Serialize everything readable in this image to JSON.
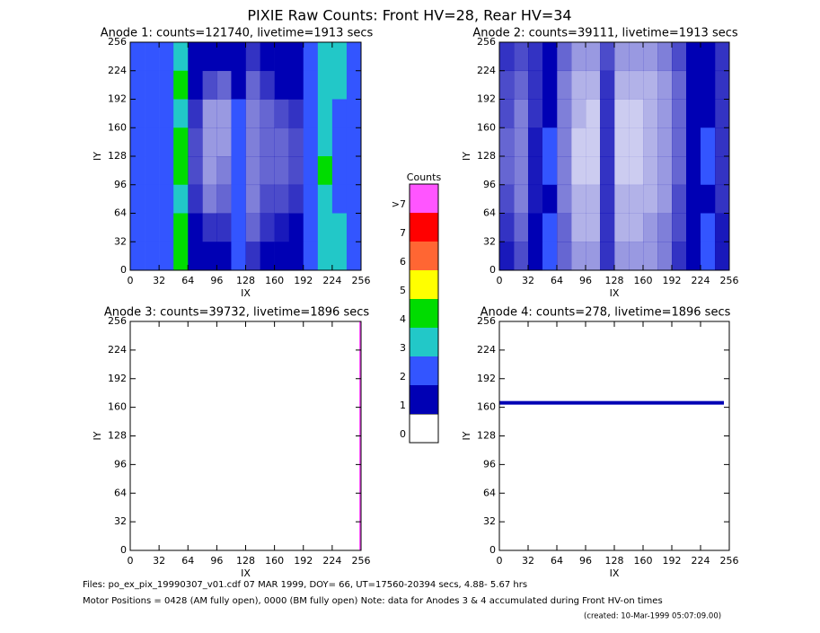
{
  "title": "PIXIE Raw Counts:  Front HV=28, Rear HV=34",
  "colorbar": {
    "title": "Counts",
    "labels": [
      "0",
      "1",
      "2",
      "3",
      "4",
      "5",
      "6",
      "7",
      ">7"
    ],
    "colors": [
      "#ffffff",
      "#0000b4",
      "#3355ff",
      "#22c8c8",
      "#00dc00",
      "#ffff00",
      "#ff6633",
      "#ff0000",
      "#ff55ff"
    ]
  },
  "footer": [
    "Files: po_ex_pix_19990307_v01.cdf    07 MAR 1999, DOY= 66, UT=17560-20394 secs,  4.88- 5.67 hrs",
    "Motor Positions = 0428 (AM fully open), 0000 (BM fully open)    Note: data for Anodes 3 & 4 accumulated during Front HV-on times",
    "(created: 10-Mar-1999 05:07:09.00)"
  ],
  "chart_data": [
    {
      "type": "heatmap",
      "title": "Anode 1: counts=121740, livetime=1913 secs",
      "xlabel": "IX",
      "ylabel": "IY",
      "xlim": [
        0,
        256
      ],
      "ylim": [
        0,
        256
      ],
      "xticks": [
        0,
        32,
        64,
        96,
        128,
        160,
        192,
        224,
        256
      ],
      "yticks": [
        0,
        32,
        64,
        96,
        128,
        160,
        192,
        224,
        256
      ],
      "values": [
        [
          1.5,
          1.5,
          2,
          3,
          1.2,
          1,
          1,
          1.2,
          0.8,
          1,
          1,
          1,
          1.5,
          2.5,
          2.5,
          1.5
        ],
        [
          1.5,
          1.5,
          2,
          4,
          1,
          0.7,
          0.6,
          1.2,
          0.6,
          0.8,
          1,
          1,
          1.5,
          3,
          2.5,
          1.5
        ],
        [
          1.5,
          1.5,
          2,
          3,
          0.8,
          0.4,
          0.4,
          1.5,
          0.5,
          0.6,
          0.7,
          0.8,
          1.5,
          2.5,
          2,
          1.5
        ],
        [
          1.5,
          1.5,
          2,
          4,
          0.7,
          0.4,
          0.4,
          2,
          0.5,
          0.6,
          0.6,
          0.7,
          1.5,
          3,
          2,
          1.5
        ],
        [
          1.5,
          1.5,
          2,
          4,
          0.7,
          0.4,
          0.5,
          2,
          0.5,
          0.6,
          0.6,
          0.7,
          1.5,
          4,
          2,
          1.5
        ],
        [
          1.5,
          1.5,
          2,
          3,
          0.8,
          0.5,
          0.6,
          1.5,
          0.5,
          0.7,
          0.7,
          0.8,
          1.5,
          3,
          2,
          1.5
        ],
        [
          1.5,
          1.5,
          2,
          4,
          1,
          0.8,
          0.8,
          1.5,
          0.6,
          0.8,
          0.9,
          1,
          1.5,
          3,
          3,
          1.5
        ],
        [
          1.5,
          1.5,
          2,
          4,
          1.2,
          1,
          1,
          1.5,
          0.8,
          1,
          1,
          1.2,
          1.5,
          2.5,
          3,
          1.5
        ]
      ]
    },
    {
      "type": "heatmap",
      "title": "Anode 2: counts=39111, livetime=1913 secs",
      "xlabel": "IX",
      "ylabel": "IY",
      "xlim": [
        0,
        256
      ],
      "ylim": [
        0,
        256
      ],
      "xticks": [
        0,
        32,
        64,
        96,
        128,
        160,
        192,
        224,
        256
      ],
      "yticks": [
        0,
        32,
        64,
        96,
        128,
        160,
        192,
        224,
        256
      ],
      "values": [
        [
          0.8,
          0.7,
          0.8,
          1.2,
          0.6,
          0.4,
          0.4,
          0.7,
          0.4,
          0.4,
          0.4,
          0.5,
          0.7,
          1,
          1.2,
          0.8
        ],
        [
          0.7,
          0.6,
          0.8,
          1.2,
          0.5,
          0.3,
          0.3,
          0.8,
          0.3,
          0.3,
          0.3,
          0.4,
          0.6,
          1.1,
          1.3,
          0.8
        ],
        [
          0.7,
          0.5,
          0.8,
          1.3,
          0.5,
          0.3,
          0.2,
          0.8,
          0.2,
          0.2,
          0.3,
          0.4,
          0.6,
          1.2,
          1.4,
          0.8
        ],
        [
          0.6,
          0.5,
          0.9,
          1.5,
          0.5,
          0.2,
          0.2,
          0.8,
          0.2,
          0.2,
          0.3,
          0.4,
          0.6,
          1.2,
          1.5,
          0.8
        ],
        [
          0.6,
          0.5,
          0.9,
          1.5,
          0.5,
          0.2,
          0.2,
          0.8,
          0.2,
          0.2,
          0.3,
          0.4,
          0.6,
          1.2,
          1.5,
          0.8
        ],
        [
          0.7,
          0.5,
          0.9,
          1.4,
          0.5,
          0.3,
          0.3,
          0.8,
          0.3,
          0.3,
          0.3,
          0.4,
          0.7,
          1.2,
          1.4,
          0.8
        ],
        [
          0.8,
          0.6,
          1,
          1.5,
          0.6,
          0.3,
          0.3,
          0.8,
          0.3,
          0.3,
          0.4,
          0.5,
          0.7,
          1.2,
          1.5,
          0.9
        ],
        [
          0.9,
          0.7,
          1,
          1.5,
          0.6,
          0.4,
          0.4,
          0.8,
          0.4,
          0.4,
          0.4,
          0.5,
          0.8,
          1.3,
          1.5,
          0.9
        ]
      ]
    },
    {
      "type": "heatmap",
      "title": "Anode 3: counts=39732, livetime=1896 secs",
      "xlabel": "IX",
      "ylabel": "IY",
      "xlim": [
        0,
        256
      ],
      "ylim": [
        0,
        256
      ],
      "xticks": [
        0,
        32,
        64,
        96,
        128,
        160,
        192,
        224,
        256
      ],
      "yticks": [
        0,
        32,
        64,
        96,
        128,
        160,
        192,
        224,
        256
      ],
      "features": [
        {
          "ix": [
            254,
            256
          ],
          "iy": [
            0,
            256
          ],
          "value": 8
        }
      ]
    },
    {
      "type": "heatmap",
      "title": "Anode 4: counts=278, livetime=1896 secs",
      "xlabel": "IX",
      "ylabel": "IY",
      "xlim": [
        0,
        256
      ],
      "ylim": [
        0,
        256
      ],
      "xticks": [
        0,
        32,
        64,
        96,
        128,
        160,
        192,
        224,
        256
      ],
      "yticks": [
        0,
        32,
        64,
        96,
        128,
        160,
        192,
        224,
        256
      ],
      "features": [
        {
          "ix": [
            0,
            250
          ],
          "iy": [
            163,
            167
          ],
          "value": 1
        }
      ]
    }
  ]
}
